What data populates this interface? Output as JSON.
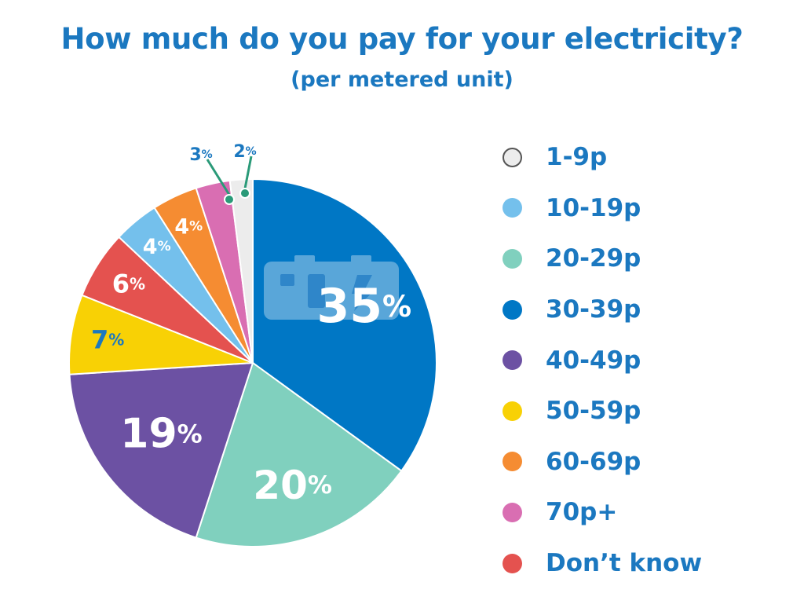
{
  "chart_data": {
    "type": "pie",
    "title": "How much do you pay for your electricity?",
    "subtitle": "(per metered unit)",
    "unit_suffix": "%",
    "slices": [
      {
        "label": "30-39p",
        "value": 35,
        "color": "#0077c5"
      },
      {
        "label": "20-29p",
        "value": 20,
        "color": "#80d0be"
      },
      {
        "label": "40-49p",
        "value": 19,
        "color": "#6c51a3"
      },
      {
        "label": "50-59p",
        "value": 7,
        "color": "#f8d105"
      },
      {
        "label": "Don’t know",
        "value": 6,
        "color": "#e4524f"
      },
      {
        "label": "10-19p",
        "value": 4,
        "color": "#74c0ec"
      },
      {
        "label": "60-69p",
        "value": 4,
        "color": "#f58c32"
      },
      {
        "label": "70p+",
        "value": 3,
        "color": "#d96eb2"
      },
      {
        "label": "1-9p",
        "value": 2,
        "color": "#ececec"
      }
    ],
    "legend": [
      "1-9p",
      "10-19p",
      "20-29p",
      "30-39p",
      "40-49p",
      "50-59p",
      "60-69p",
      "70p+",
      "Don’t know"
    ],
    "legend_position": "right"
  },
  "icons": {
    "battery_meter": "meter-icon",
    "leader_color": "#2a9a78"
  }
}
